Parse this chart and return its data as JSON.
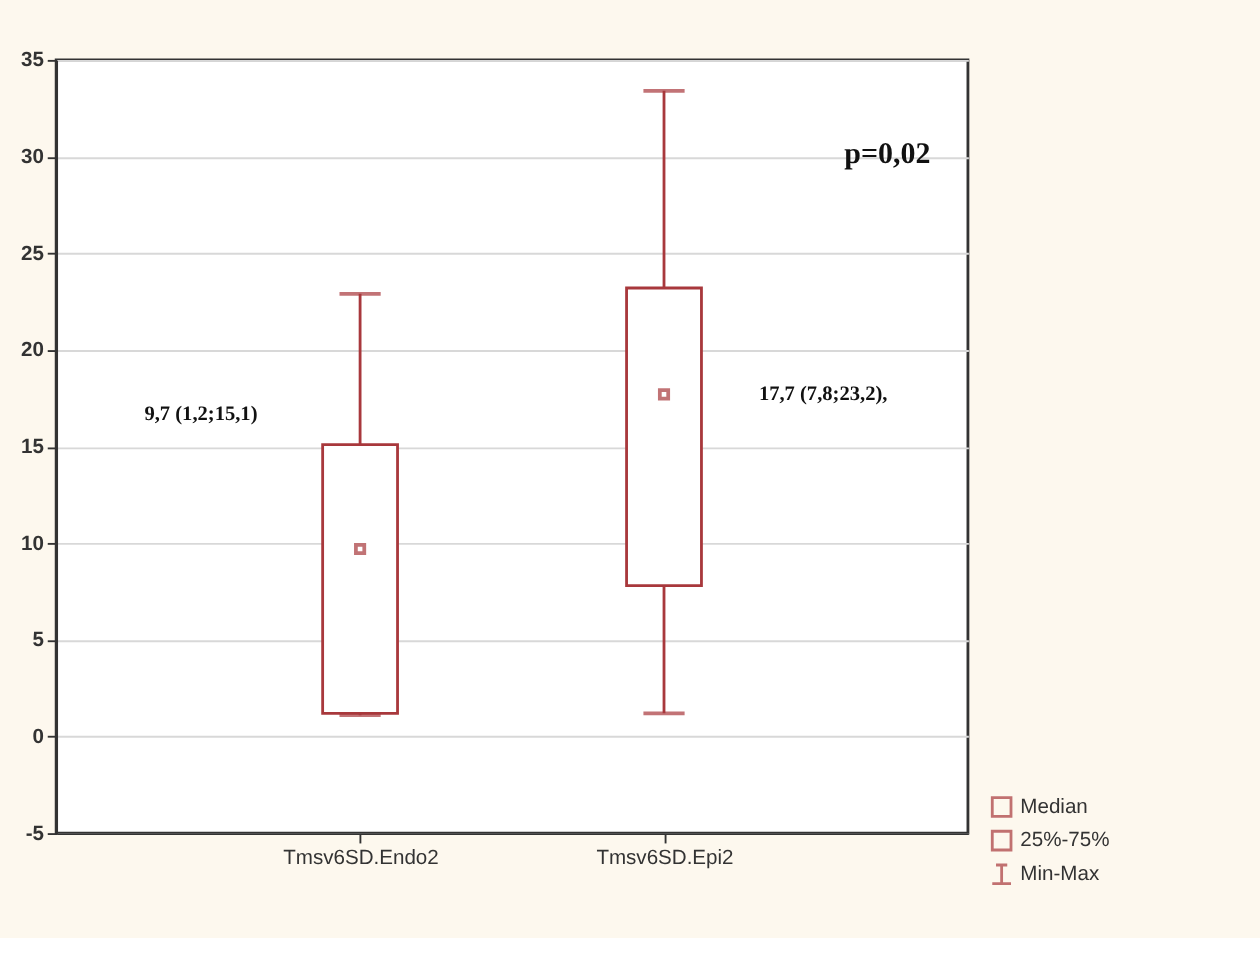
{
  "chart_data": {
    "type": "box",
    "categories": [
      "Tmsv6SD.Endo2",
      "Tmsv6SD.Epi2"
    ],
    "series": [
      {
        "color": "#a8383c",
        "boxes": [
          {
            "low": 1.1,
            "q1": 1.2,
            "median": 9.7,
            "q3": 15.1,
            "high": 22.9
          },
          {
            "low": 1.2,
            "q1": 7.8,
            "median": 17.7,
            "q3": 23.2,
            "high": 33.4
          }
        ]
      }
    ],
    "ylim": [
      -5,
      35
    ],
    "yticks": [
      -5,
      0,
      5,
      10,
      15,
      20,
      25,
      30,
      35
    ],
    "grid": "y",
    "annotations": [
      "9,7 (1,2;15,1)",
      "17,7 (7,8;23,2),",
      "p=0,02",
      "Median",
      "25%-75%",
      "Min-Max"
    ]
  }
}
